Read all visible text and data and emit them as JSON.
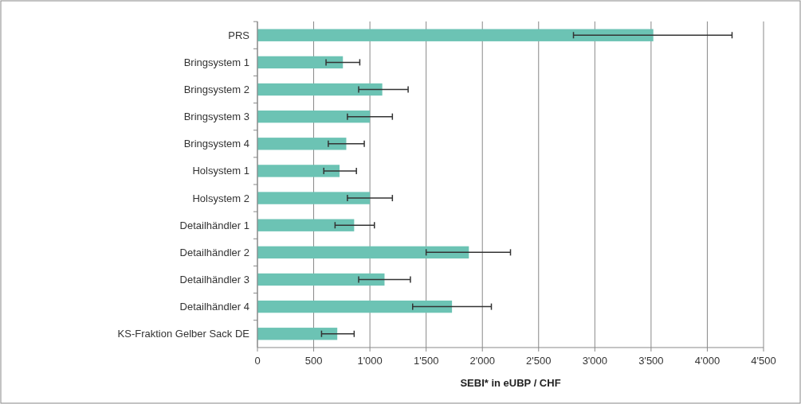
{
  "chart_data": {
    "type": "bar",
    "orientation": "horizontal",
    "xlabel": "SEBI* in eUBP / CHF",
    "categories": [
      "PRS",
      "Bringsystem 1",
      "Bringsystem 2",
      "Bringsystem 3",
      "Bringsystem 4",
      "Holsystem 1",
      "Holsystem 2",
      "Detailhändler 1",
      "Detailhändler 2",
      "Detailhändler 3",
      "Detailhändler 4",
      "KS-Fraktion Gelber Sack DE"
    ],
    "values": [
      3520,
      760,
      1110,
      1000,
      790,
      730,
      1000,
      860,
      1880,
      1130,
      1730,
      710
    ],
    "errors": [
      [
        2810,
        4220
      ],
      [
        610,
        910
      ],
      [
        900,
        1340
      ],
      [
        800,
        1200
      ],
      [
        630,
        950
      ],
      [
        590,
        880
      ],
      [
        800,
        1200
      ],
      [
        690,
        1040
      ],
      [
        1500,
        2250
      ],
      [
        900,
        1360
      ],
      [
        1380,
        2080
      ],
      [
        570,
        860
      ]
    ],
    "color": "#6cc3b4",
    "xlim": [
      0,
      4500
    ],
    "xticks": [
      0,
      500,
      {
        "value": 1000,
        "label": "1'000"
      },
      {
        "value": 1500,
        "label": "1'500"
      },
      {
        "value": 2000,
        "label": "2'000"
      },
      {
        "value": 2500,
        "label": "2'500"
      },
      {
        "value": 3000,
        "label": "3'000"
      },
      {
        "value": 3500,
        "label": "3'500"
      },
      {
        "value": 4000,
        "label": "4'000"
      },
      {
        "value": 4500,
        "label": "4'500"
      }
    ],
    "grid": "x"
  }
}
